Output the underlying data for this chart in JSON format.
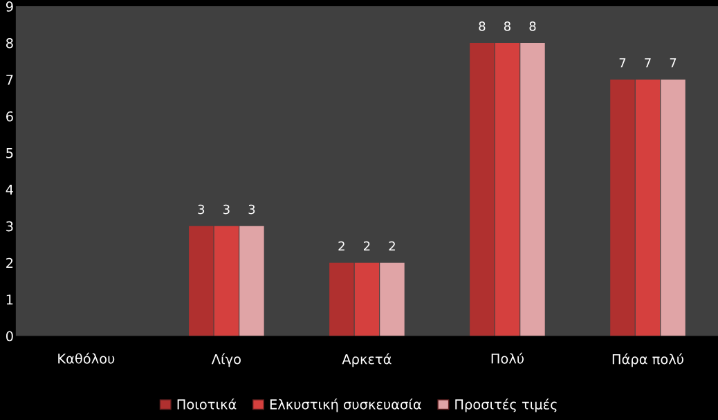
{
  "chart_data": {
    "type": "bar",
    "categories": [
      "Καθόλου",
      "Λίγο",
      "Αρκετά",
      "Πολύ",
      "Πάρα πολύ"
    ],
    "series": [
      {
        "name": "Ποιοτικά",
        "color": "#b0302f",
        "values": [
          0,
          3,
          2,
          8,
          7
        ],
        "value_labels": [
          null,
          "3",
          "2",
          "8",
          "7"
        ]
      },
      {
        "name": "Ελκυστική συσκευασία",
        "color": "#d5403e",
        "values": [
          0,
          3,
          2,
          8,
          7
        ],
        "value_labels": [
          null,
          "3",
          "2",
          "8",
          "7"
        ]
      },
      {
        "name": "Προσιτές τιμές",
        "color": "#e0a4a6",
        "values": [
          0,
          3,
          2,
          8,
          7
        ],
        "value_labels": [
          null,
          "3",
          "2",
          "8",
          "7"
        ]
      }
    ],
    "ylim": [
      0,
      9
    ],
    "yticks": [
      0,
      1,
      2,
      3,
      4,
      5,
      6,
      7,
      8,
      9
    ],
    "grid": false,
    "legend": "bottom"
  }
}
